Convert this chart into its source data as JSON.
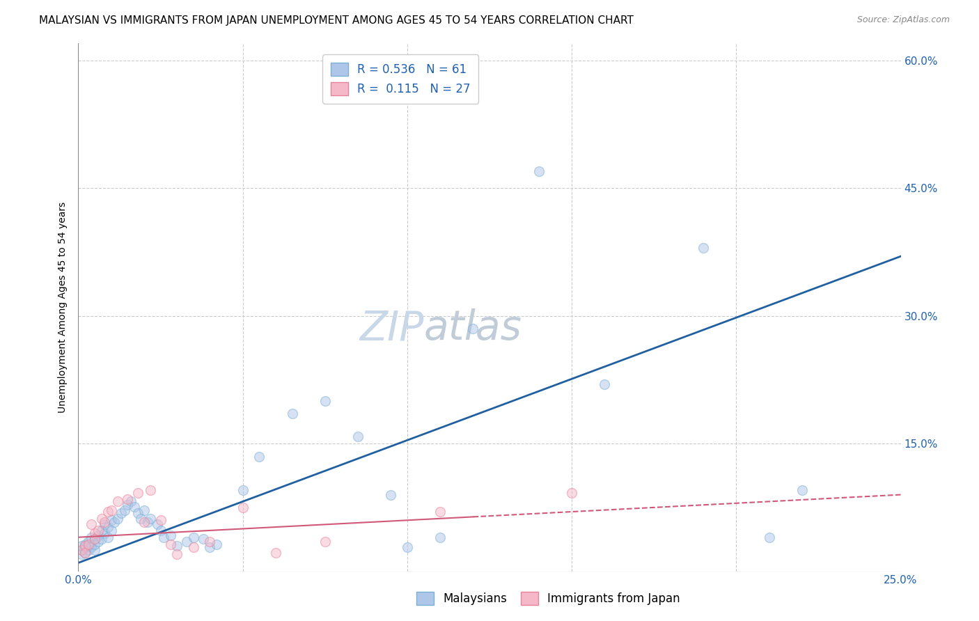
{
  "title": "MALAYSIAN VS IMMIGRANTS FROM JAPAN UNEMPLOYMENT AMONG AGES 45 TO 54 YEARS CORRELATION CHART",
  "source": "Source: ZipAtlas.com",
  "ylabel": "Unemployment Among Ages 45 to 54 years",
  "xlim": [
    0.0,
    0.25
  ],
  "ylim": [
    0.0,
    0.62
  ],
  "xticks": [
    0.0,
    0.05,
    0.1,
    0.15,
    0.2,
    0.25
  ],
  "yticks": [
    0.0,
    0.15,
    0.3,
    0.45,
    0.6
  ],
  "xtick_labels": [
    "0.0%",
    "",
    "",
    "",
    "",
    "25.0%"
  ],
  "ytick_labels_right": [
    "",
    "15.0%",
    "30.0%",
    "45.0%",
    "60.0%"
  ],
  "watermark_zip": "ZIP",
  "watermark_atlas": "atlas",
  "blue_scatter_x": [
    0.001,
    0.001,
    0.001,
    0.002,
    0.002,
    0.002,
    0.003,
    0.003,
    0.003,
    0.004,
    0.004,
    0.004,
    0.005,
    0.005,
    0.005,
    0.006,
    0.006,
    0.007,
    0.007,
    0.008,
    0.008,
    0.009,
    0.009,
    0.01,
    0.01,
    0.011,
    0.012,
    0.013,
    0.014,
    0.015,
    0.016,
    0.017,
    0.018,
    0.019,
    0.02,
    0.021,
    0.022,
    0.024,
    0.025,
    0.026,
    0.028,
    0.03,
    0.033,
    0.035,
    0.038,
    0.04,
    0.042,
    0.05,
    0.055,
    0.065,
    0.075,
    0.085,
    0.095,
    0.1,
    0.11,
    0.12,
    0.14,
    0.16,
    0.19,
    0.21,
    0.22
  ],
  "blue_scatter_y": [
    0.025,
    0.03,
    0.02,
    0.028,
    0.032,
    0.022,
    0.03,
    0.025,
    0.035,
    0.03,
    0.04,
    0.028,
    0.038,
    0.025,
    0.032,
    0.042,
    0.035,
    0.048,
    0.038,
    0.055,
    0.045,
    0.052,
    0.04,
    0.06,
    0.048,
    0.058,
    0.062,
    0.068,
    0.072,
    0.078,
    0.082,
    0.076,
    0.068,
    0.062,
    0.072,
    0.058,
    0.062,
    0.055,
    0.048,
    0.04,
    0.042,
    0.03,
    0.035,
    0.04,
    0.038,
    0.028,
    0.032,
    0.095,
    0.135,
    0.185,
    0.2,
    0.158,
    0.09,
    0.028,
    0.04,
    0.285,
    0.47,
    0.22,
    0.38,
    0.04,
    0.095
  ],
  "pink_scatter_x": [
    0.001,
    0.002,
    0.002,
    0.003,
    0.004,
    0.005,
    0.005,
    0.006,
    0.007,
    0.008,
    0.009,
    0.01,
    0.012,
    0.015,
    0.018,
    0.02,
    0.022,
    0.025,
    0.028,
    0.03,
    0.035,
    0.04,
    0.05,
    0.06,
    0.075,
    0.11,
    0.15
  ],
  "pink_scatter_y": [
    0.025,
    0.03,
    0.022,
    0.032,
    0.055,
    0.045,
    0.038,
    0.048,
    0.062,
    0.058,
    0.07,
    0.072,
    0.082,
    0.085,
    0.092,
    0.058,
    0.095,
    0.06,
    0.032,
    0.02,
    0.028,
    0.035,
    0.075,
    0.022,
    0.035,
    0.07,
    0.092
  ],
  "blue_line_x": [
    0.0,
    0.25
  ],
  "blue_line_y": [
    0.01,
    0.37
  ],
  "pink_line_x": [
    0.0,
    0.25
  ],
  "pink_line_y": [
    0.04,
    0.09
  ],
  "scatter_alpha": 0.5,
  "scatter_size": 100,
  "blue_color": "#7bafd4",
  "blue_fill": "#aec6e8",
  "pink_color": "#e8829a",
  "pink_fill": "#f4b8c8",
  "blue_line_color": "#2060a0",
  "pink_line_color": "#d05878",
  "grid_color": "#cccccc",
  "background_color": "#ffffff",
  "title_fontsize": 11,
  "axis_label_fontsize": 10,
  "tick_fontsize": 11,
  "watermark_fontsize_zip": 42,
  "watermark_fontsize_atlas": 42,
  "watermark_color_zip": "#c8d8e8",
  "watermark_color_atlas": "#c0ccd8",
  "source_fontsize": 9,
  "legend_label_blue": "R = 0.536   N = 61",
  "legend_label_pink": "R =  0.115   N = 27",
  "bottom_legend_blue": "Malaysians",
  "bottom_legend_pink": "Immigrants from Japan"
}
